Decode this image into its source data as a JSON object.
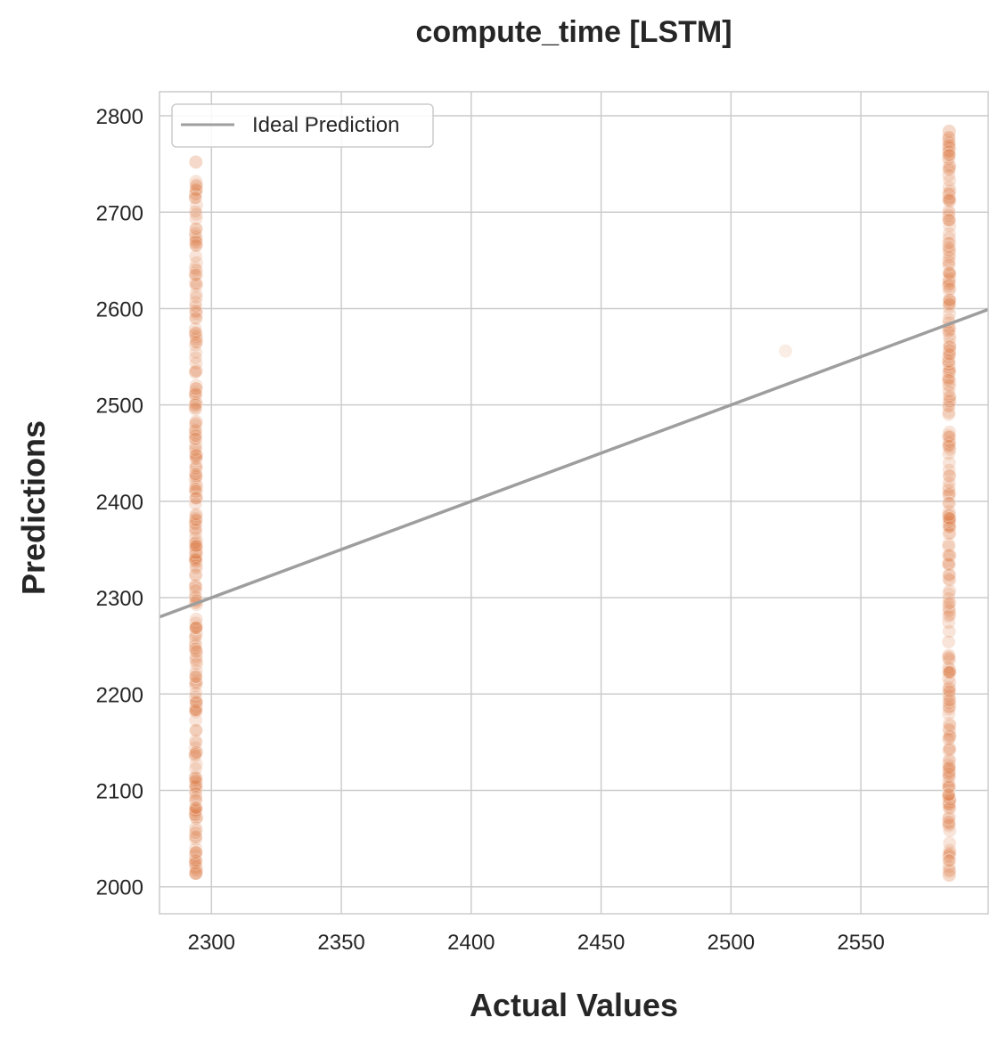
{
  "chart_data": {
    "type": "scatter",
    "title": "compute_time [LSTM]",
    "xlabel": "Actual Values",
    "ylabel": "Predictions",
    "xlim": [
      2280,
      2599
    ],
    "ylim": [
      1972,
      2825
    ],
    "x_ticks": [
      2300,
      2350,
      2400,
      2450,
      2500,
      2550
    ],
    "y_ticks": [
      2000,
      2100,
      2200,
      2300,
      2400,
      2500,
      2600,
      2700,
      2800
    ],
    "grid": true,
    "legend": {
      "position": "top-left",
      "entries": [
        "Ideal Prediction"
      ]
    },
    "colors": {
      "points": "#dd8452",
      "ideal_line": "#9e9e9e",
      "grid": "#cccccc",
      "frame": "#cccccc"
    },
    "series": [
      {
        "kind": "points",
        "x_clusters": [
          {
            "x": 2294,
            "y_min": 2014,
            "y_max": 2752
          },
          {
            "x": 2584,
            "y_min": 2012,
            "y_max": 2784
          }
        ],
        "outliers": [
          {
            "x": 2521,
            "y": 2556
          }
        ]
      },
      {
        "name": "Ideal Prediction",
        "kind": "line",
        "x": [
          2280,
          2599
        ],
        "y": [
          2280,
          2599
        ]
      }
    ]
  }
}
